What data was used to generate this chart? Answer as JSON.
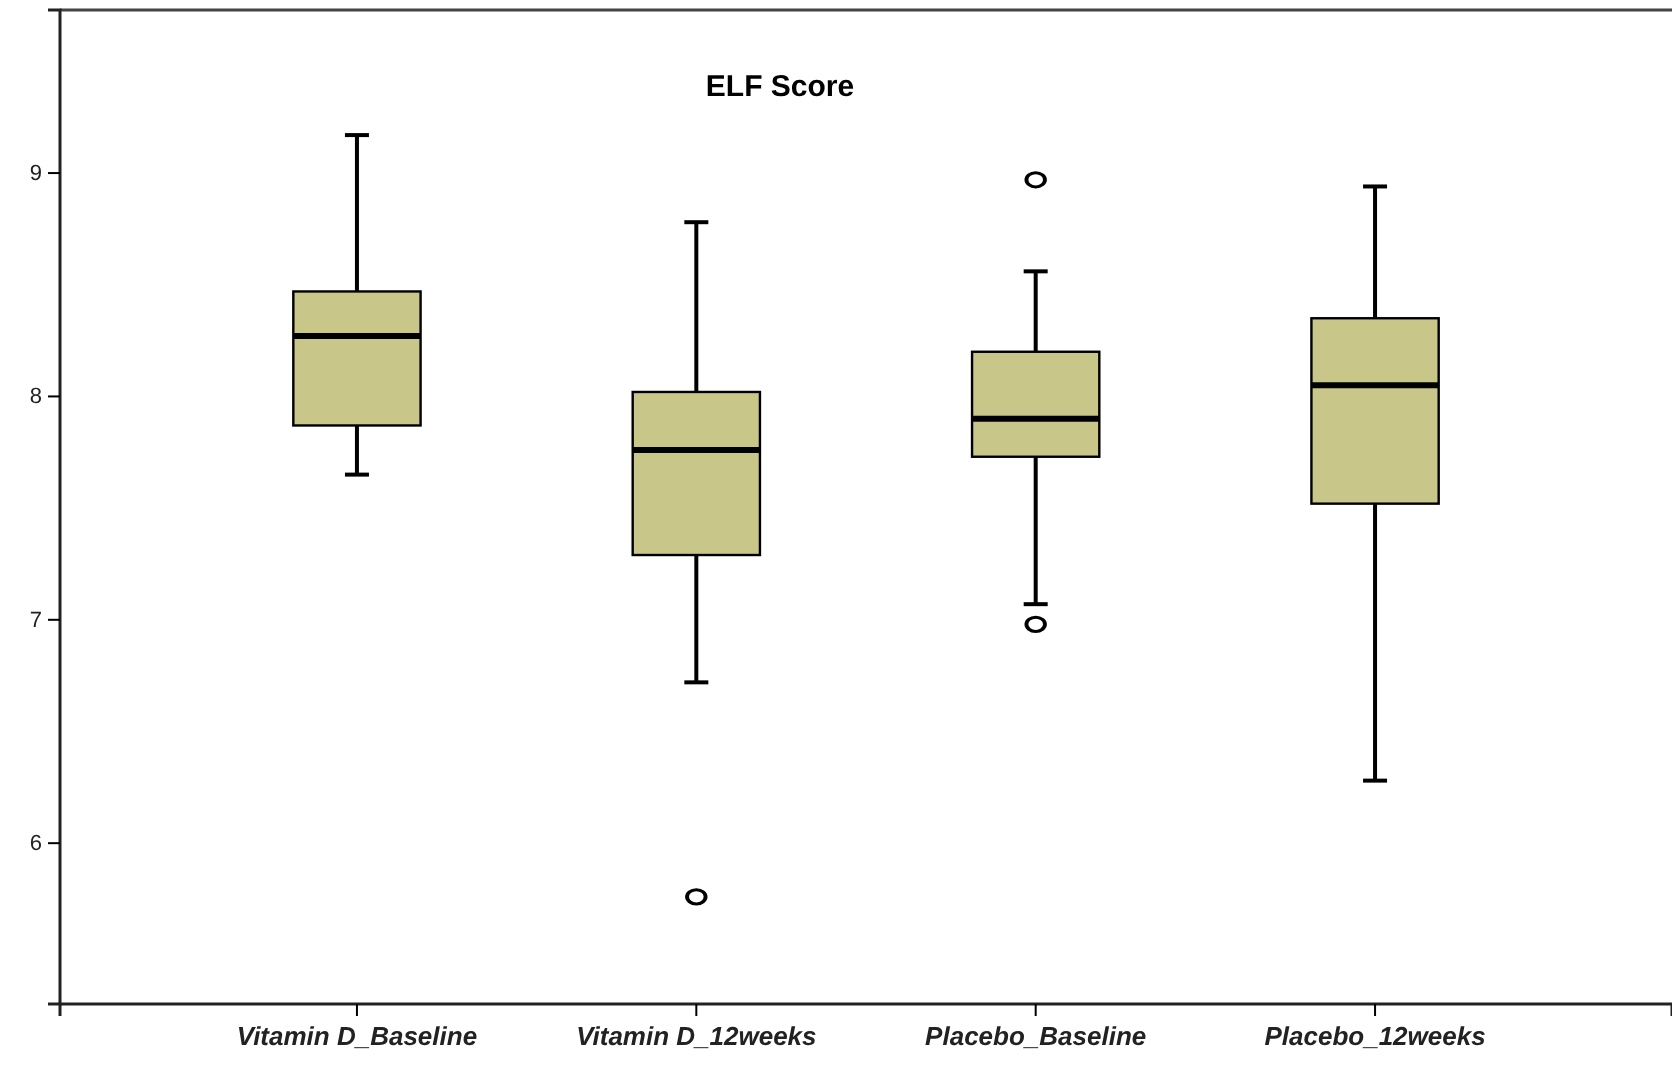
{
  "chart_data": {
    "type": "box",
    "title": "ELF Score",
    "categories": [
      "Vitamin D_Baseline",
      "Vitamin D_12weeks",
      "Placebo_Baseline",
      "Placebo_12weeks"
    ],
    "boxes": [
      {
        "low": 7.65,
        "q1": 7.87,
        "median": 8.27,
        "q3": 8.47,
        "high": 9.17
      },
      {
        "low": 6.72,
        "q1": 7.29,
        "median": 7.76,
        "q3": 8.02,
        "high": 8.78,
        "outliers": [
          5.76
        ]
      },
      {
        "low": 7.07,
        "q1": 7.73,
        "median": 7.9,
        "q3": 8.2,
        "high": 8.56,
        "outliers": [
          8.97,
          6.98
        ]
      },
      {
        "low": 6.28,
        "q1": 7.52,
        "median": 8.05,
        "q3": 8.35,
        "high": 8.94
      }
    ],
    "color": "#c9c68a",
    "ylim": [
      5.28,
      9.73
    ],
    "yticks": [
      6,
      7,
      8,
      9
    ],
    "grid": false,
    "marker": "circle"
  }
}
